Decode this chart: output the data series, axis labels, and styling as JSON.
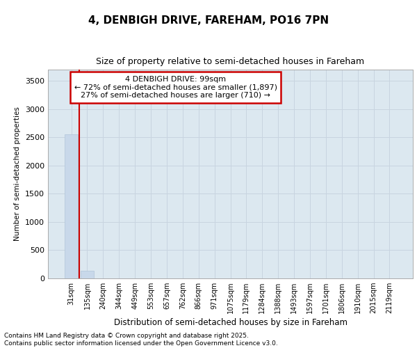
{
  "title": "4, DENBIGH DRIVE, FAREHAM, PO16 7PN",
  "subtitle": "Size of property relative to semi-detached houses in Fareham",
  "xlabel": "Distribution of semi-detached houses by size in Fareham",
  "ylabel": "Number of semi-detached properties",
  "categories": [
    "31sqm",
    "135sqm",
    "240sqm",
    "344sqm",
    "449sqm",
    "553sqm",
    "657sqm",
    "762sqm",
    "866sqm",
    "971sqm",
    "1075sqm",
    "1179sqm",
    "1284sqm",
    "1388sqm",
    "1493sqm",
    "1597sqm",
    "1701sqm",
    "1806sqm",
    "1910sqm",
    "2015sqm",
    "2119sqm"
  ],
  "values": [
    2550,
    130,
    0,
    0,
    0,
    0,
    0,
    0,
    0,
    0,
    0,
    0,
    0,
    0,
    0,
    0,
    0,
    0,
    0,
    0,
    0
  ],
  "bar_color": "#c8d8ea",
  "bar_edgecolor": "#b0c4d8",
  "ylim": [
    0,
    3700
  ],
  "yticks": [
    0,
    500,
    1000,
    1500,
    2000,
    2500,
    3000,
    3500
  ],
  "property_label": "4 DENBIGH DRIVE: 99sqm",
  "annotation_line1": "← 72% of semi-detached houses are smaller (1,897)",
  "annotation_line2": "27% of semi-detached houses are larger (710) →",
  "vline_x": 0.5,
  "annotation_box_color": "#ffffff",
  "annotation_box_edgecolor": "#cc0000",
  "vline_color": "#cc0000",
  "grid_color": "#c8d4e0",
  "background_color": "#dce8f0",
  "fig_background": "#ffffff",
  "footer_line1": "Contains HM Land Registry data © Crown copyright and database right 2025.",
  "footer_line2": "Contains public sector information licensed under the Open Government Licence v3.0."
}
